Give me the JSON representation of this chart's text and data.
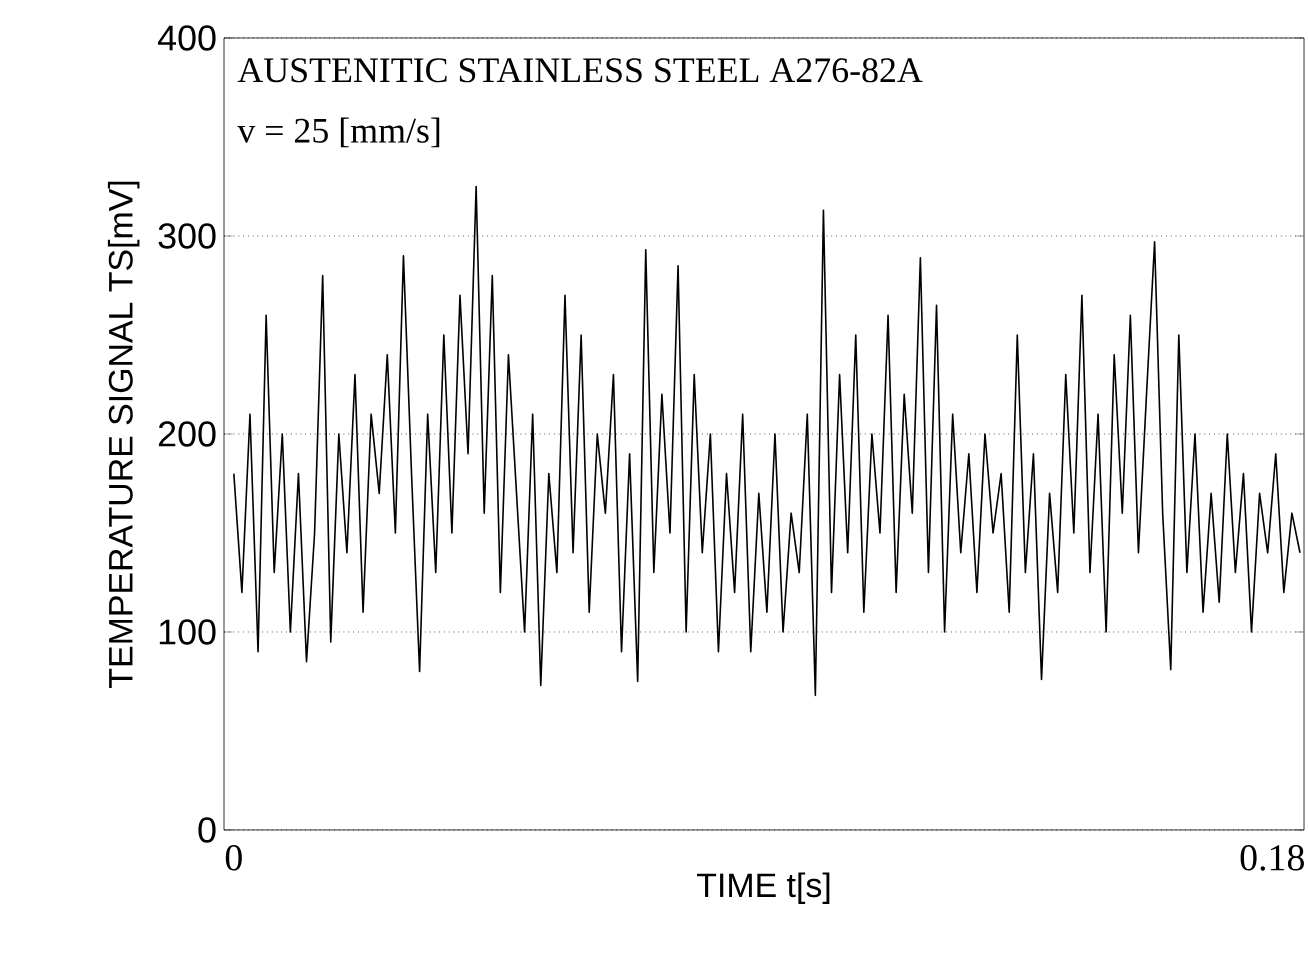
{
  "chart_data": {
    "type": "line",
    "xlabel": "TIME t[s]",
    "ylabel": "TEMPERATURE SIGNAL TS[mV]",
    "annotations": [
      "AUSTENITIC STAINLESS STEEL A276-82A",
      "v = 25 [mm/s]"
    ],
    "xlim": [
      -0.0017,
      0.1855
    ],
    "xticks": [
      0,
      0.18
    ],
    "ylim": [
      0,
      400
    ],
    "yticks": [
      0,
      100,
      200,
      300,
      400
    ],
    "grid": "y",
    "marker": "none",
    "line_style": "solid",
    "series": [
      {
        "color": "#000000",
        "x": [
          0,
          0.0014,
          0.0028,
          0.0042,
          0.0056,
          0.007,
          0.0084,
          0.0098,
          0.0112,
          0.0126,
          0.014,
          0.0154,
          0.0168,
          0.0182,
          0.0196,
          0.021,
          0.0224,
          0.0238,
          0.0252,
          0.0266,
          0.028,
          0.0294,
          0.0308,
          0.0322,
          0.0336,
          0.035,
          0.0364,
          0.0378,
          0.0392,
          0.0406,
          0.042,
          0.0434,
          0.0448,
          0.0462,
          0.0476,
          0.049,
          0.0504,
          0.0518,
          0.0532,
          0.0546,
          0.056,
          0.0574,
          0.0588,
          0.0602,
          0.0616,
          0.063,
          0.0644,
          0.0658,
          0.0672,
          0.0686,
          0.07,
          0.0714,
          0.0728,
          0.0742,
          0.0756,
          0.077,
          0.0784,
          0.0798,
          0.0812,
          0.0826,
          0.084,
          0.0854,
          0.0868,
          0.0882,
          0.0896,
          0.091,
          0.0924,
          0.0938,
          0.0952,
          0.0966,
          0.098,
          0.0994,
          0.1008,
          0.1022,
          0.1036,
          0.105,
          0.1064,
          0.1078,
          0.1092,
          0.1106,
          0.112,
          0.1134,
          0.1148,
          0.1162,
          0.1176,
          0.119,
          0.1204,
          0.1218,
          0.1232,
          0.1246,
          0.126,
          0.1274,
          0.1288,
          0.1302,
          0.1316,
          0.133,
          0.1344,
          0.1358,
          0.1372,
          0.1386,
          0.14,
          0.1414,
          0.1428,
          0.1442,
          0.1456,
          0.147,
          0.1484,
          0.1498,
          0.1512,
          0.1526,
          0.154,
          0.1554,
          0.1568,
          0.1582,
          0.1596,
          0.161,
          0.1624,
          0.1638,
          0.1652,
          0.1666,
          0.168,
          0.1694,
          0.1708,
          0.1722,
          0.1736,
          0.175,
          0.1764,
          0.1778,
          0.1792,
          0.1806,
          0.182,
          0.1834,
          0.1848
        ],
        "values": [
          180,
          120,
          210,
          90,
          260,
          130,
          200,
          100,
          180,
          85,
          150,
          280,
          95,
          200,
          140,
          230,
          110,
          210,
          170,
          240,
          150,
          290,
          180,
          80,
          210,
          130,
          250,
          150,
          270,
          190,
          325,
          160,
          280,
          120,
          240,
          170,
          100,
          210,
          73,
          180,
          130,
          270,
          140,
          250,
          110,
          200,
          160,
          230,
          90,
          190,
          75,
          293,
          130,
          220,
          150,
          285,
          100,
          230,
          140,
          200,
          90,
          180,
          120,
          210,
          90,
          170,
          110,
          200,
          100,
          160,
          130,
          210,
          68,
          313,
          120,
          230,
          140,
          250,
          110,
          200,
          150,
          260,
          120,
          220,
          160,
          289,
          130,
          265,
          100,
          210,
          140,
          190,
          120,
          200,
          150,
          180,
          110,
          250,
          130,
          190,
          76,
          170,
          120,
          230,
          150,
          270,
          130,
          210,
          100,
          240,
          160,
          260,
          140,
          220,
          297,
          160,
          81,
          250,
          130,
          200,
          110,
          170,
          115,
          200,
          130,
          180,
          100,
          170,
          140,
          190,
          120,
          160,
          140
        ]
      }
    ]
  }
}
